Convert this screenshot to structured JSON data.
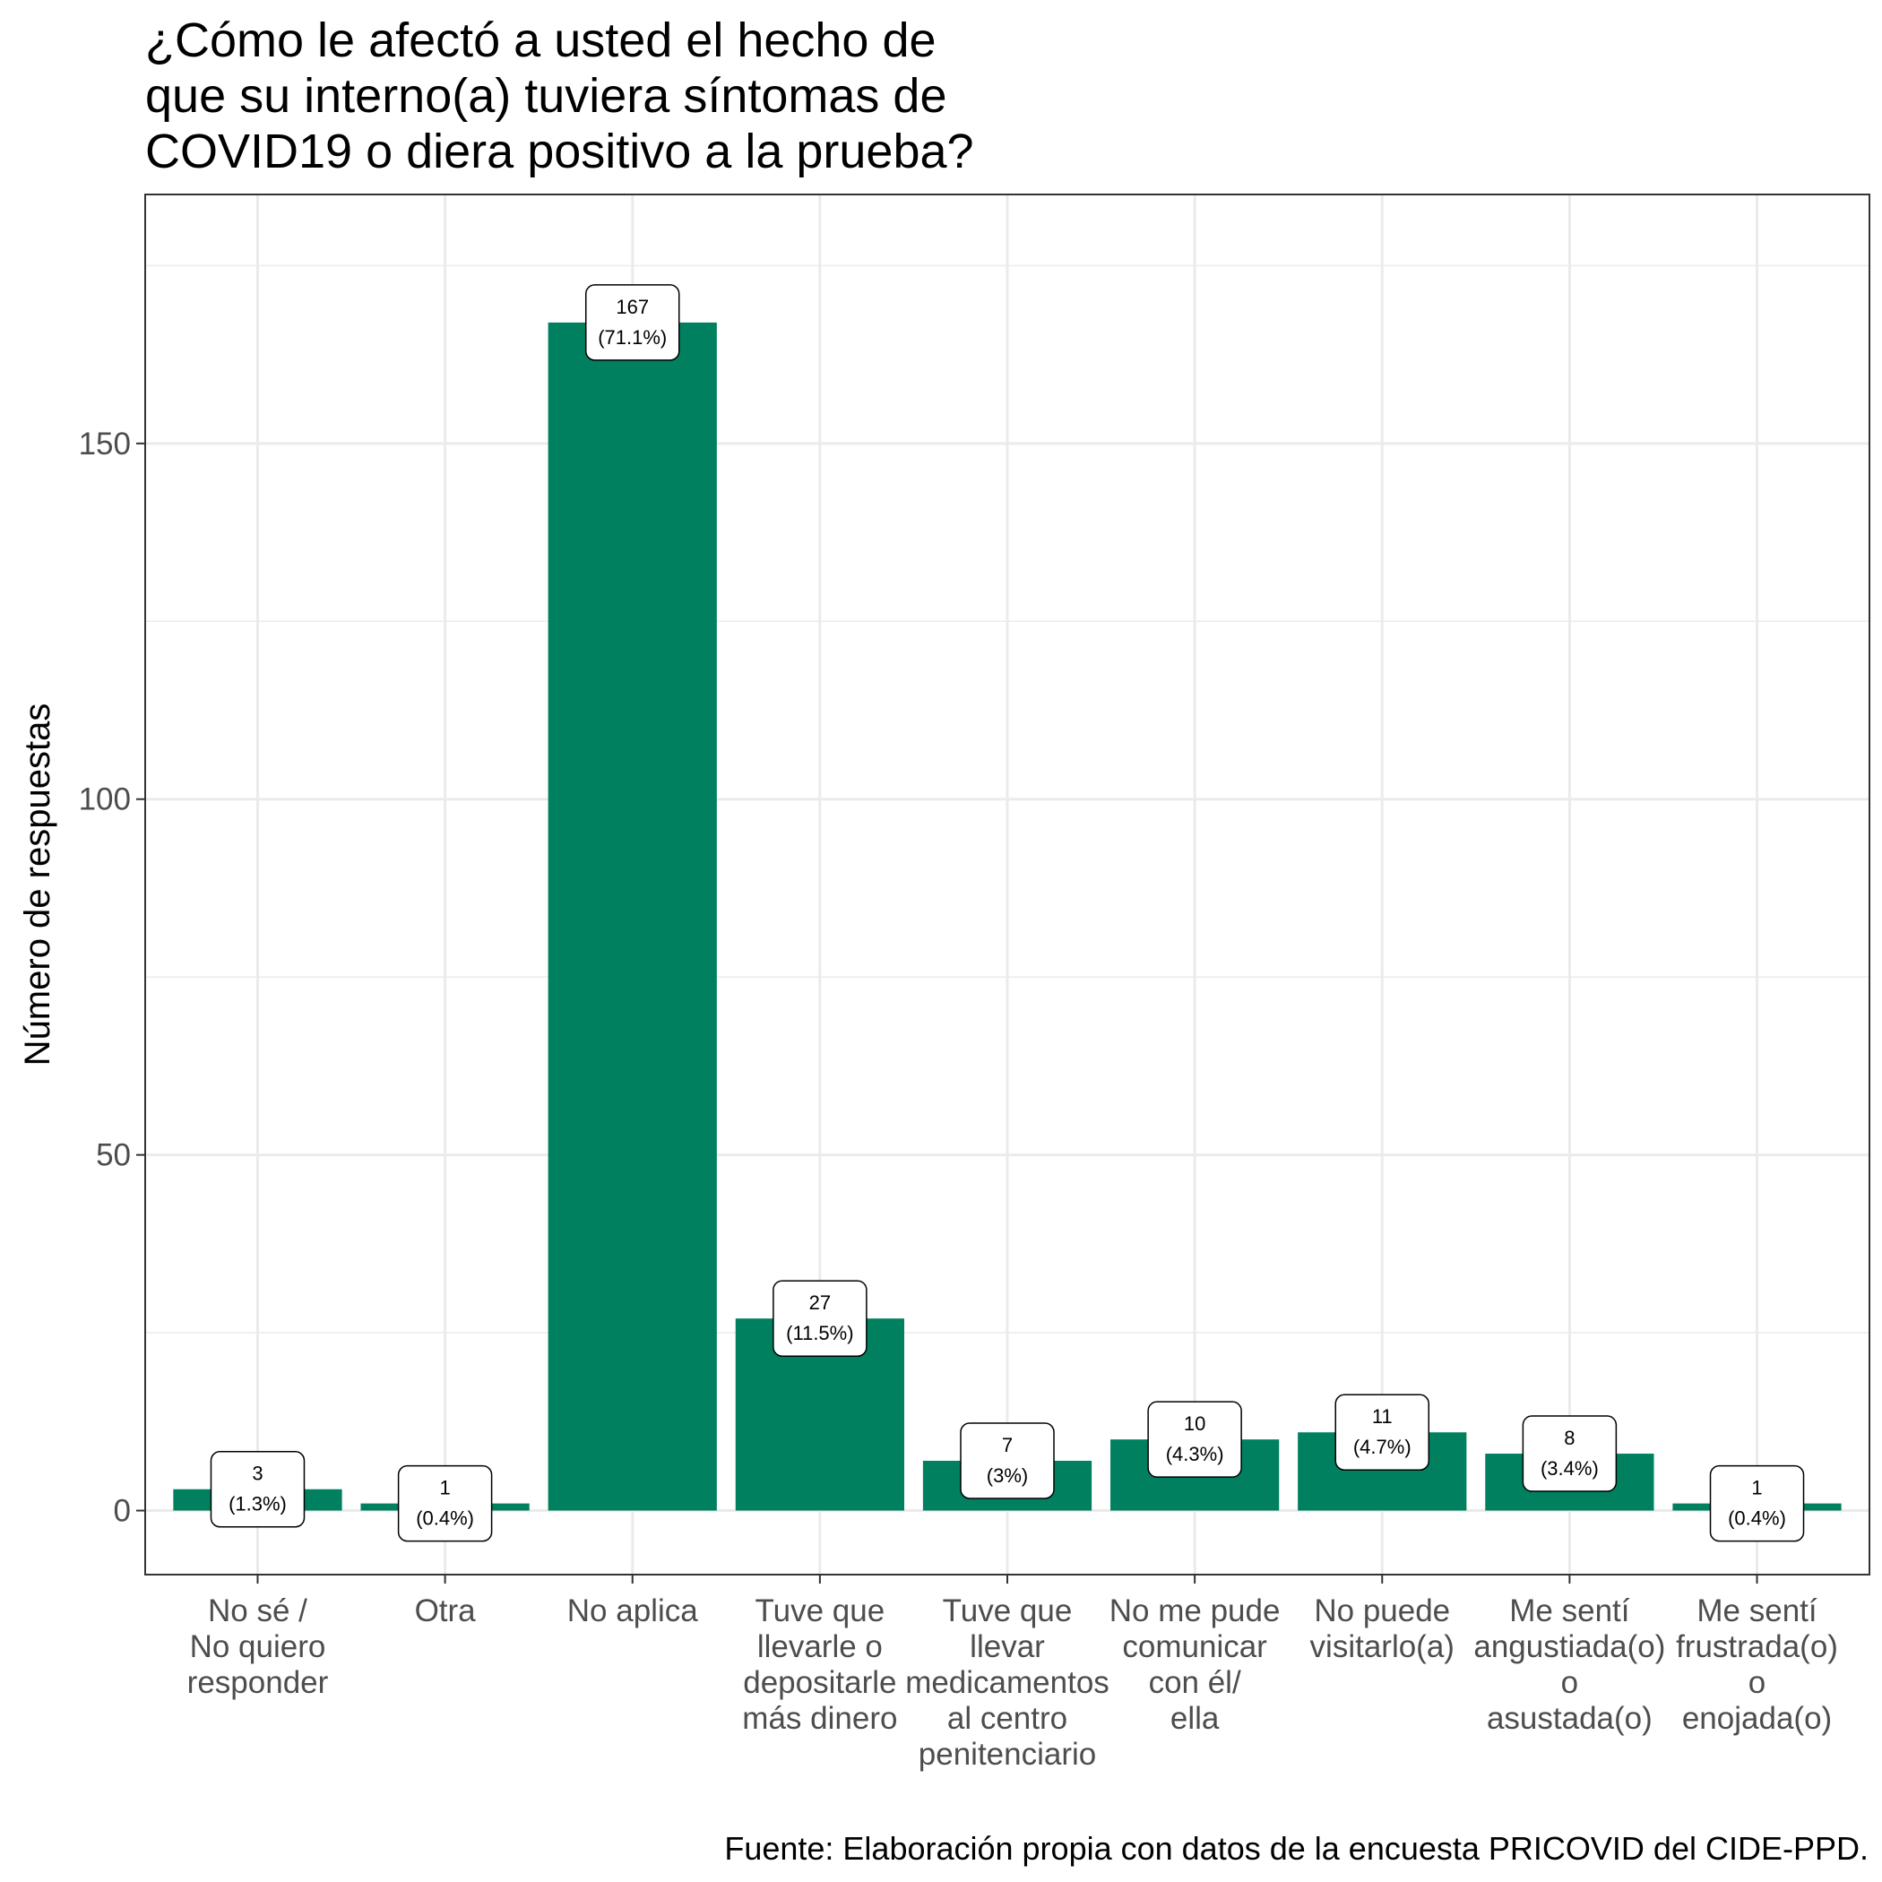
{
  "chart_data": {
    "type": "bar",
    "title": "¿Cómo le afectó a usted el hecho de\nque su interno(a) tuviera síntomas de\nCOVID19 o diera positivo a la prueba?",
    "ylabel": "Número de respuestas",
    "xlabel": "",
    "caption": "Fuente: Elaboración propia con datos de la encuesta PRICOVID del CIDE-PPD.",
    "categories": [
      "No sé /\nNo quiero\nresponder",
      "Otra",
      "No aplica",
      "Tuve que\nllevarle o\ndepositarle\nmás dinero",
      "Tuve que\nllevar\nmedicamentos\nal centro\npenitenciario",
      "No me pude\ncomunicar\ncon él/\nella",
      "No puede\nvisitarlo(a)",
      "Me sentí\nangustiada(o)\no\nasustada(o)",
      "Me sentí\nfrustrada(o)\no\nenojada(o)"
    ],
    "values": [
      3,
      1,
      167,
      27,
      7,
      10,
      11,
      8,
      1
    ],
    "labels": [
      "3\n(1.3%)",
      "1\n(0.4%)",
      "167\n(71.1%)",
      "27\n(11.5%)",
      "7\n(3%)",
      "10\n(4.3%)",
      "11\n(4.7%)",
      "8\n(3.4%)",
      "1\n(0.4%)"
    ],
    "ylim": [
      -9,
      185
    ],
    "yticks": [
      0,
      50,
      100,
      150
    ],
    "grid": true,
    "bar_color": "#00805f"
  }
}
